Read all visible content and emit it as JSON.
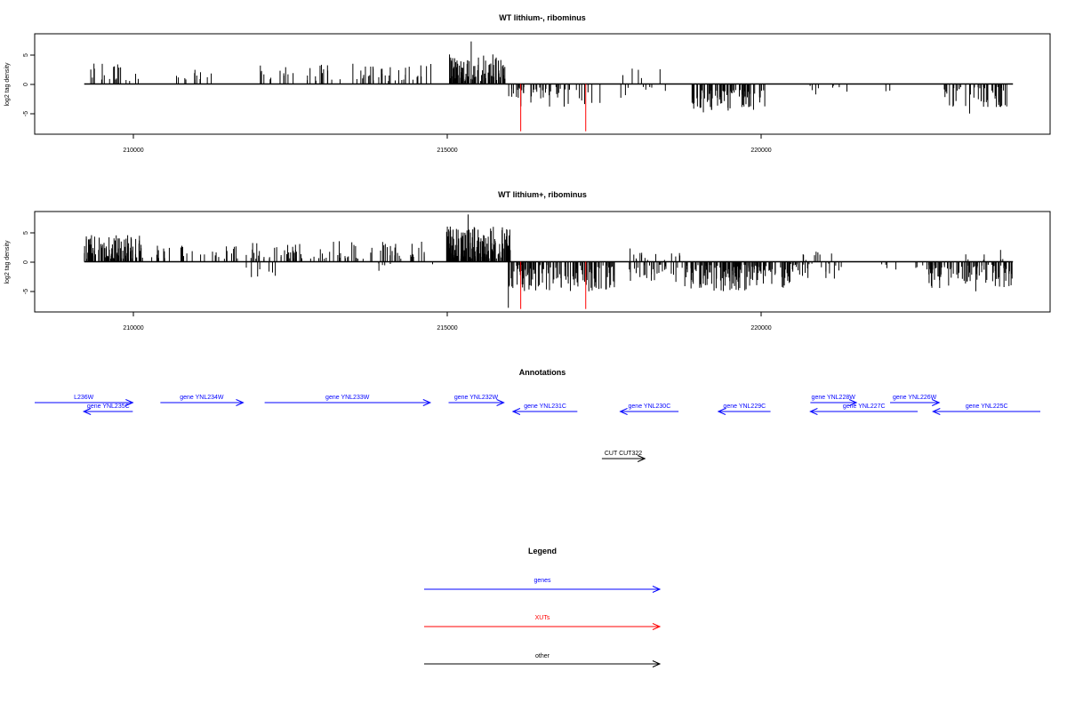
{
  "chart_data": [
    {
      "type": "bar",
      "title": "WT lithium-, ribominus",
      "ylabel": "log2 tag density",
      "xlim": [
        208200,
        224600
      ],
      "ylim": [
        -8.5,
        8.5
      ],
      "x_ticks": [
        210000,
        215000,
        220000
      ],
      "x_tick_labels": [
        "210000",
        "215000",
        "220000"
      ],
      "y_ticks": [
        -5,
        0,
        5
      ],
      "y_tick_labels": [
        "-5",
        "0",
        "5"
      ],
      "baseline": [
        209000,
        224000
      ],
      "highlight_color": "#ff0000",
      "highlights": [
        {
          "x": 216050,
          "y": -8.0
        },
        {
          "x": 217100,
          "y": -8.0
        }
      ],
      "segments": [
        {
          "from": 209050,
          "to": 209900,
          "min": 0.5,
          "max": 4.0,
          "count": 20
        },
        {
          "from": 210300,
          "to": 211300,
          "min": 0.5,
          "max": 2.5,
          "count": 12
        },
        {
          "from": 211800,
          "to": 212800,
          "min": 0.5,
          "max": 3.5,
          "count": 18
        },
        {
          "from": 212800,
          "to": 214600,
          "min": 0.5,
          "max": 3.5,
          "count": 45
        },
        {
          "from": 214900,
          "to": 215800,
          "min": 0.5,
          "max": 4.5,
          "count": 90
        },
        {
          "from": 215850,
          "to": 216900,
          "min": -4.0,
          "max": -0.5,
          "count": 45
        },
        {
          "from": 216900,
          "to": 217800,
          "min": -3.5,
          "max": -0.5,
          "count": 10
        },
        {
          "from": 218000,
          "to": 218400,
          "min": -2.0,
          "max": -0.5,
          "count": 5
        },
        {
          "from": 218800,
          "to": 220000,
          "min": -4.5,
          "max": -1.0,
          "count": 80
        },
        {
          "from": 220000,
          "to": 222200,
          "min": -2.0,
          "max": -0.3,
          "count": 10
        },
        {
          "from": 222800,
          "to": 223900,
          "min": -4.0,
          "max": -0.5,
          "count": 45
        }
      ],
      "points": [
        {
          "x": 215250,
          "y": 7.2
        },
        {
          "x": 214900,
          "y": 5.0
        },
        {
          "x": 215600,
          "y": 5.0
        },
        {
          "x": 215450,
          "y": 4.8
        },
        {
          "x": 217850,
          "y": 2.6
        },
        {
          "x": 217950,
          "y": 2.4
        },
        {
          "x": 218300,
          "y": 2.5
        },
        {
          "x": 217700,
          "y": 1.5
        },
        {
          "x": 218000,
          "y": 1.0
        },
        {
          "x": 219000,
          "y": -4.8
        },
        {
          "x": 219400,
          "y": -4.5
        },
        {
          "x": 223300,
          "y": -5.0
        },
        {
          "x": 223900,
          "y": -3.8
        }
      ]
    },
    {
      "type": "bar",
      "title": "WT lithium+, ribominus",
      "ylabel": "log2 tag density",
      "xlim": [
        208200,
        224600
      ],
      "ylim": [
        -8.5,
        8.5
      ],
      "x_ticks": [
        210000,
        215000,
        220000
      ],
      "x_tick_labels": [
        "210000",
        "215000",
        "220000"
      ],
      "y_ticks": [
        -5,
        0,
        5
      ],
      "y_tick_labels": [
        "-5",
        "0",
        "5"
      ],
      "baseline": [
        209000,
        224000
      ],
      "highlight_color": "#ff0000",
      "highlights": [
        {
          "x": 216050,
          "y": -8.0
        },
        {
          "x": 217100,
          "y": -8.0
        }
      ],
      "segments": [
        {
          "from": 209000,
          "to": 209950,
          "min": 0.5,
          "max": 4.5,
          "count": 110
        },
        {
          "from": 210050,
          "to": 211500,
          "min": 0.5,
          "max": 3.0,
          "count": 30
        },
        {
          "from": 211600,
          "to": 212100,
          "min": -2.5,
          "max": -0.3,
          "count": 6
        },
        {
          "from": 211600,
          "to": 212500,
          "min": 0.5,
          "max": 3.5,
          "count": 35
        },
        {
          "from": 212500,
          "to": 214500,
          "min": 0.5,
          "max": 3.5,
          "count": 55
        },
        {
          "from": 213500,
          "to": 214700,
          "min": -2.0,
          "max": -0.3,
          "count": 6
        },
        {
          "from": 214850,
          "to": 215900,
          "min": 0.5,
          "max": 6.0,
          "count": 180
        },
        {
          "from": 215850,
          "to": 217600,
          "min": -5.0,
          "max": -0.5,
          "count": 130
        },
        {
          "from": 217800,
          "to": 218700,
          "min": 0.3,
          "max": 2.5,
          "count": 15
        },
        {
          "from": 217800,
          "to": 218700,
          "min": -3.5,
          "max": -0.5,
          "count": 30
        },
        {
          "from": 218700,
          "to": 220400,
          "min": -5.0,
          "max": -0.5,
          "count": 150
        },
        {
          "from": 220400,
          "to": 221300,
          "min": -3.0,
          "max": -0.3,
          "count": 25
        },
        {
          "from": 220500,
          "to": 221100,
          "min": 0.3,
          "max": 2.0,
          "count": 8
        },
        {
          "from": 221800,
          "to": 222600,
          "min": -1.5,
          "max": -0.3,
          "count": 8
        },
        {
          "from": 222600,
          "to": 224000,
          "min": -4.5,
          "max": -0.5,
          "count": 90
        },
        {
          "from": 223000,
          "to": 223900,
          "min": 0.3,
          "max": 1.5,
          "count": 6
        }
      ],
      "points": [
        {
          "x": 215200,
          "y": 8.0
        },
        {
          "x": 215850,
          "y": -7.8
        },
        {
          "x": 211700,
          "y": -2.6
        },
        {
          "x": 223400,
          "y": -5.0
        },
        {
          "x": 223800,
          "y": 2.0
        },
        {
          "x": 217150,
          "y": -5.0
        }
      ]
    }
  ],
  "annotations": {
    "title": "Annotations",
    "xlim": [
      208200,
      224600
    ],
    "items": [
      {
        "label": "L236W",
        "from": 208200,
        "to": 209800,
        "strand": "+",
        "row": 0,
        "color": "#0000ff"
      },
      {
        "label": "gene YNL235C",
        "from": 209000,
        "to": 209800,
        "strand": "-",
        "row": 1,
        "color": "#0000ff"
      },
      {
        "label": "gene YNL234W",
        "from": 210250,
        "to": 211600,
        "strand": "+",
        "row": 0,
        "color": "#0000ff"
      },
      {
        "label": "gene YNL233W",
        "from": 211950,
        "to": 214650,
        "strand": "+",
        "row": 0,
        "color": "#0000ff"
      },
      {
        "label": "gene YNL232W",
        "from": 214950,
        "to": 215850,
        "strand": "+",
        "row": 0,
        "color": "#0000ff"
      },
      {
        "label": "gene YNL231C",
        "from": 216000,
        "to": 217050,
        "strand": "-",
        "row": 1,
        "color": "#0000ff"
      },
      {
        "label": "gene YNL230C",
        "from": 217750,
        "to": 218700,
        "strand": "-",
        "row": 1,
        "color": "#0000ff"
      },
      {
        "label": "gene YNL229C",
        "from": 219350,
        "to": 220200,
        "strand": "-",
        "row": 1,
        "color": "#0000ff"
      },
      {
        "label": "gene YNL228W",
        "from": 220850,
        "to": 221600,
        "strand": "+",
        "row": 0,
        "color": "#0000ff"
      },
      {
        "label": "gene YNL227C",
        "from": 220850,
        "to": 222600,
        "strand": "-",
        "row": 1,
        "color": "#0000ff"
      },
      {
        "label": "gene YNL226W",
        "from": 222150,
        "to": 222950,
        "strand": "+",
        "row": 0,
        "color": "#0000ff"
      },
      {
        "label": "gene YNL225C",
        "from": 222850,
        "to": 224600,
        "strand": "-",
        "row": 1,
        "color": "#0000ff"
      },
      {
        "label": "CUT CUT322",
        "from": 217450,
        "to": 218150,
        "strand": "+",
        "row": 2,
        "color": "#000000"
      }
    ]
  },
  "legend": {
    "title": "Legend",
    "entries": [
      {
        "label": "genes",
        "color": "#0000ff"
      },
      {
        "label": "XUTs",
        "color": "#ff0000"
      },
      {
        "label": "other",
        "color": "#000000"
      }
    ]
  }
}
